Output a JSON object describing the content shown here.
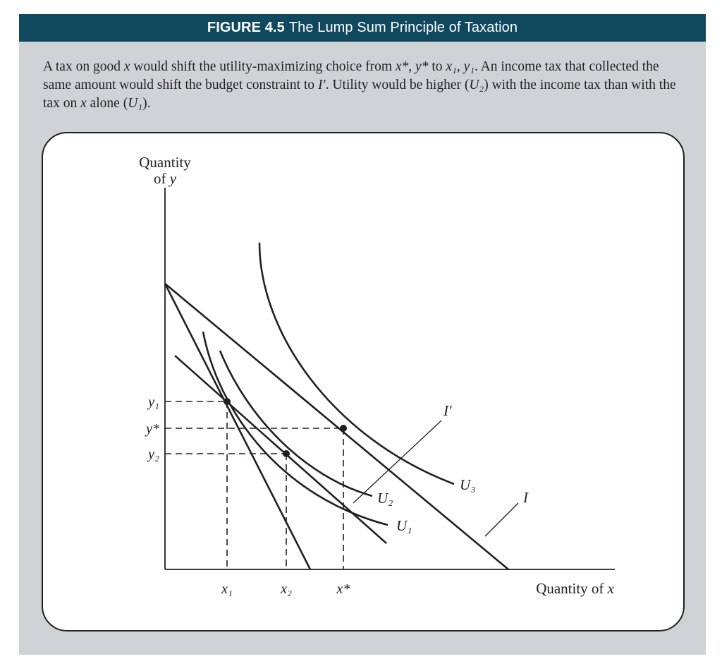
{
  "figure": {
    "number": "FIGURE 4.5",
    "title": "The Lump Sum Principle of Taxation"
  },
  "caption": {
    "s1_a": "A tax on good ",
    "s1_x": "x",
    "s1_b": " would shift the utility-maximizing choice from ",
    "s1_xstar": "x*",
    "s1_c": ", ",
    "s1_ystar": "y*",
    "s1_d": " to ",
    "s1_x1": "x₁",
    "s1_e": ", ",
    "s1_y1": "y₁",
    "s1_f": ". An income tax that collected the same amount would shift the budget constraint to ",
    "s1_iprime": "I′",
    "s1_g": ". Utility would be higher (",
    "s1_u2": "U₂",
    "s1_h": ") with the income tax than with the tax on ",
    "s1_x2": "x",
    "s1_i": " alone (",
    "s1_u1": "U₁",
    "s1_j": ")."
  },
  "diagram": {
    "y_axis_label_line1": "Quantity",
    "y_axis_label_line2_a": "of ",
    "y_axis_label_line2_b": "y",
    "x_axis_label_a": "Quantity of ",
    "x_axis_label_b": "x",
    "y_ticks": {
      "y1": "y₁",
      "ystar": "y*",
      "y2": "y₂"
    },
    "x_ticks": {
      "x1": "x₁",
      "x2": "x₂",
      "xstar": "x*"
    },
    "curve_labels": {
      "U1": "U₁",
      "U2": "U₂",
      "U3": "U₃",
      "I": "I",
      "Iprime": "I′"
    }
  },
  "colors": {
    "title_bar": "#10485e",
    "frame_bg": "#d0d3d5",
    "ink": "#231f20"
  }
}
